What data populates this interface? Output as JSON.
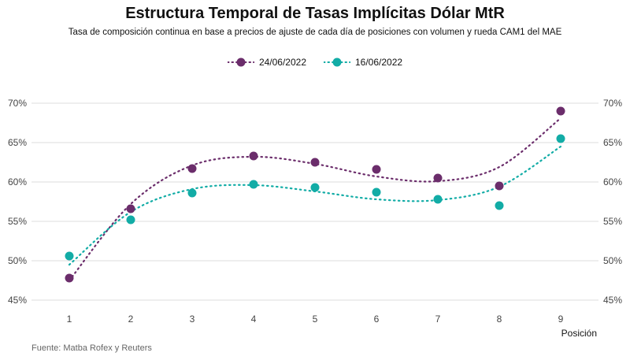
{
  "chart_data": {
    "type": "scatter",
    "title": "Estructura Temporal de Tasas Implícitas Dólar MtR",
    "subtitle": "Tasa de composición continua en base a precios de ajuste de cada día de posiciones con volumen y rueda CAM1 del MAE",
    "xlabel": "Posición",
    "ylabel": "",
    "x": [
      1,
      2,
      3,
      4,
      5,
      6,
      7,
      8,
      9
    ],
    "x_ticks": [
      "1",
      "2",
      "3",
      "4",
      "5",
      "6",
      "7",
      "8",
      "9"
    ],
    "y_ticks": [
      "45%",
      "50%",
      "55%",
      "60%",
      "65%",
      "70%"
    ],
    "ylim": [
      45,
      70
    ],
    "grid": "horizontal",
    "legend_position": "top",
    "series": [
      {
        "name": "24/06/2022",
        "color": "#6b2d6b",
        "values": [
          47.8,
          56.6,
          61.7,
          63.3,
          62.5,
          61.6,
          60.5,
          59.5,
          69.0
        ],
        "trend": [
          47.5,
          57.2,
          62.1,
          63.2,
          62.3,
          60.7,
          60.1,
          61.9,
          68.1
        ]
      },
      {
        "name": "16/06/2022",
        "color": "#12aca6",
        "values": [
          50.6,
          55.2,
          58.6,
          59.7,
          59.3,
          58.7,
          57.8,
          57.0,
          65.5
        ],
        "trend": [
          49.5,
          56.2,
          59.1,
          59.6,
          58.8,
          57.8,
          57.7,
          59.4,
          64.5
        ]
      }
    ]
  },
  "source_note": "Fuente: Matba Rofex y Reuters"
}
